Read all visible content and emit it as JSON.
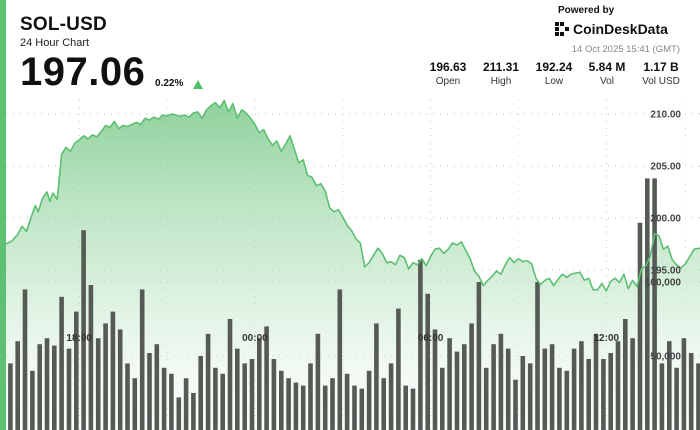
{
  "header": {
    "ticker": "SOL-USD",
    "subtitle": "24 Hour Chart",
    "price": "197.06",
    "change": "0.22%",
    "change_direction": "up"
  },
  "branding": {
    "powered_by": "Powered by",
    "logo_text": "CoinDeskData",
    "timestamp": "14 Oct 2025 15:41 (GMT)"
  },
  "stats": [
    {
      "value": "196.63",
      "label": "Open"
    },
    {
      "value": "211.31",
      "label": "High"
    },
    {
      "value": "192.24",
      "label": "Low"
    },
    {
      "value": "5.84 M",
      "label": "Vol"
    },
    {
      "value": "1.17 B",
      "label": "Vol USD"
    }
  ],
  "colors": {
    "accent": "#5fbf72",
    "price_line": "#5cbf72",
    "volume_bar": "#555a55",
    "up_arrow": "#4cbf63"
  },
  "chart_data": {
    "type": "area",
    "x_tick_labels": [
      "18:00",
      "00:00",
      "06:00",
      "12:00"
    ],
    "x_tick_positions": [
      2.5,
      8.5,
      14.5,
      20.5
    ],
    "x_range": [
      0,
      23.7
    ],
    "y_price_range": [
      191.5,
      213
    ],
    "y_price_ticks": [
      195,
      200,
      205,
      210
    ],
    "y_price_tick_labels": [
      "195.00",
      "200.00",
      "205.00",
      "210.00"
    ],
    "y_volume_range": [
      0,
      210000
    ],
    "y_volume_ticks": [
      50000,
      100000
    ],
    "y_volume_tick_labels": [
      "50,000",
      "100,000"
    ],
    "price_x": [
      0,
      0.2,
      0.4,
      0.55,
      0.7,
      0.85,
      1,
      1.1,
      1.25,
      1.4,
      1.5,
      1.6,
      1.75,
      1.9,
      2.05,
      2.2,
      2.35,
      2.5,
      2.65,
      2.8,
      2.95,
      3.1,
      3.25,
      3.4,
      3.55,
      3.7,
      3.85,
      4,
      4.15,
      4.3,
      4.45,
      4.6,
      4.75,
      4.9,
      5.05,
      5.2,
      5.35,
      5.5,
      5.65,
      5.8,
      5.95,
      6.1,
      6.25,
      6.4,
      6.55,
      6.7,
      6.85,
      7,
      7.15,
      7.3,
      7.45,
      7.6,
      7.75,
      7.9,
      8.05,
      8.2,
      8.35,
      8.5,
      8.65,
      8.8,
      8.95,
      9.1,
      9.25,
      9.4,
      9.55,
      9.7,
      9.85,
      10,
      10.15,
      10.3,
      10.45,
      10.6,
      10.75,
      10.9,
      11.05,
      11.2,
      11.35,
      11.5,
      11.65,
      11.8,
      11.95,
      12.1,
      12.25,
      12.4,
      12.55,
      12.7,
      12.85,
      13,
      13.15,
      13.3,
      13.45,
      13.6,
      13.75,
      13.9,
      14.05,
      14.2,
      14.35,
      14.5,
      14.65,
      14.8,
      14.95,
      15.1,
      15.25,
      15.4,
      15.55,
      15.7,
      15.85,
      16,
      16.15,
      16.3,
      16.45,
      16.6,
      16.75,
      16.9,
      17.05,
      17.2,
      17.35,
      17.5,
      17.65,
      17.8,
      17.95,
      18.1,
      18.25,
      18.4,
      18.55,
      18.7,
      18.85,
      19,
      19.15,
      19.3,
      19.45,
      19.6,
      19.75,
      19.9,
      20.05,
      20.2,
      20.35,
      20.5,
      20.65,
      20.8,
      20.95,
      21.1,
      21.25,
      21.4,
      21.55,
      21.7,
      21.85,
      22,
      22.15,
      22.3,
      22.45,
      22.6,
      22.75,
      22.9,
      23.05,
      23.2,
      23.35,
      23.5,
      23.7
    ],
    "price_y": [
      197.5,
      197.8,
      198.4,
      199.2,
      198.7,
      200.0,
      201.2,
      200.6,
      201.9,
      202.5,
      201.6,
      202.4,
      201.8,
      206.1,
      206.8,
      206.4,
      207.2,
      207.5,
      207.9,
      207.6,
      208.0,
      207.8,
      208.3,
      208.9,
      208.7,
      209.3,
      208.6,
      208.9,
      208.8,
      209.0,
      209.2,
      209.0,
      209.6,
      209.4,
      209.7,
      209.5,
      209.9,
      209.8,
      210.0,
      209.9,
      209.8,
      209.9,
      209.7,
      210.1,
      210.2,
      209.6,
      210.4,
      210.8,
      211.1,
      210.6,
      211.3,
      210.2,
      211.0,
      209.6,
      210.4,
      210.1,
      209.6,
      209.0,
      208.2,
      208.5,
      207.6,
      207.0,
      207.4,
      206.4,
      207.1,
      207.9,
      206.6,
      205.3,
      205.6,
      204.1,
      203.9,
      203.1,
      203.3,
      202.6,
      201.0,
      200.6,
      200.8,
      200.1,
      199.3,
      198.8,
      198.0,
      197.6,
      195.3,
      195.7,
      196.4,
      197.1,
      196.6,
      195.7,
      195.8,
      195.5,
      196.4,
      196.2,
      195.1,
      195.7,
      195.5,
      196.1,
      195.4,
      196.3,
      197.0,
      197.1,
      196.6,
      197.0,
      197.6,
      197.4,
      197.7,
      196.9,
      196.1,
      194.9,
      194.4,
      193.5,
      194.0,
      194.4,
      194.9,
      194.6,
      195.5,
      196.2,
      195.7,
      196.1,
      195.8,
      195.9,
      195.6,
      194.2,
      193.6,
      194.0,
      194.2,
      193.5,
      194.1,
      194.6,
      194.3,
      194.6,
      194.7,
      194.8,
      194.0,
      194.2,
      193.1,
      193.1,
      193.7,
      193.0,
      193.9,
      194.2,
      193.8,
      194.6,
      193.2,
      194.0,
      193.4,
      195.1,
      195.4,
      196.3,
      198.5,
      198.3,
      197.0,
      197.3,
      196.0,
      195.5,
      195.2,
      195.6,
      196.3,
      197.0,
      197.1
    ],
    "volume_x": [
      0.15,
      0.4,
      0.65,
      0.9,
      1.15,
      1.4,
      1.65,
      1.9,
      2.15,
      2.4,
      2.65,
      2.9,
      3.15,
      3.4,
      3.65,
      3.9,
      4.15,
      4.4,
      4.65,
      4.9,
      5.15,
      5.4,
      5.65,
      5.9,
      6.15,
      6.4,
      6.65,
      6.9,
      7.15,
      7.4,
      7.65,
      7.9,
      8.15,
      8.4,
      8.65,
      8.9,
      9.15,
      9.4,
      9.65,
      9.9,
      10.15,
      10.4,
      10.65,
      10.9,
      11.15,
      11.4,
      11.65,
      11.9,
      12.15,
      12.4,
      12.65,
      12.9,
      13.15,
      13.4,
      13.65,
      13.9,
      14.15,
      14.4,
      14.65,
      14.9,
      15.15,
      15.4,
      15.65,
      15.9,
      16.15,
      16.4,
      16.65,
      16.9,
      17.15,
      17.4,
      17.65,
      17.9,
      18.15,
      18.4,
      18.65,
      18.9,
      19.15,
      19.4,
      19.65,
      19.9,
      20.15,
      20.4,
      20.65,
      20.9,
      21.15,
      21.4,
      21.65,
      21.9,
      22.15,
      22.4,
      22.65,
      22.9,
      23.15,
      23.4,
      23.65
    ],
    "volume": [
      45000,
      60000,
      95000,
      40000,
      58000,
      62000,
      57000,
      90000,
      55000,
      80000,
      135000,
      98000,
      62000,
      72000,
      80000,
      68000,
      45000,
      35000,
      95000,
      52000,
      58000,
      42000,
      38000,
      22000,
      35000,
      25000,
      50000,
      65000,
      42000,
      38000,
      75000,
      55000,
      45000,
      48000,
      62000,
      70000,
      48000,
      40000,
      35000,
      32000,
      30000,
      45000,
      65000,
      30000,
      35000,
      95000,
      38000,
      30000,
      28000,
      40000,
      72000,
      35000,
      45000,
      82000,
      30000,
      28000,
      115000,
      92000,
      68000,
      42000,
      62000,
      53000,
      58000,
      72000,
      100000,
      42000,
      58000,
      65000,
      55000,
      34000,
      50000,
      45000,
      100000,
      55000,
      58000,
      42000,
      40000,
      55000,
      60000,
      48000,
      65000,
      48000,
      52000,
      60000,
      75000,
      62000,
      140000,
      170000,
      170000,
      45000,
      60000,
      42000,
      62000,
      52000,
      45000
    ],
    "title": "",
    "xlabel": "",
    "ylabel": "",
    "grid": "dotted horizontal",
    "legend": "none"
  }
}
